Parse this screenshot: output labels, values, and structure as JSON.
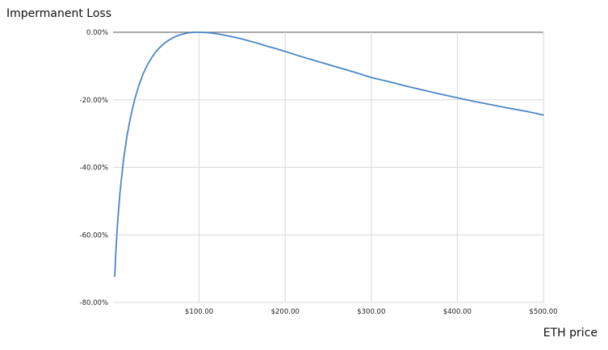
{
  "chart_data": {
    "type": "line",
    "title": "",
    "ylabel": "Impermanent Loss",
    "xlabel": "ETH price",
    "xlim": [
      0,
      500
    ],
    "ylim": [
      -80,
      0
    ],
    "x_ticks": [
      100,
      200,
      300,
      400,
      500
    ],
    "x_tick_labels": [
      "$100.00",
      "$200.00",
      "$300.00",
      "$400.00",
      "$500.00"
    ],
    "y_ticks": [
      0,
      -20,
      -40,
      -60,
      -80
    ],
    "y_tick_labels": [
      "0.00%",
      "-20.00%",
      "-40.00%",
      "-60.00%",
      "-80.00%"
    ],
    "grid": true,
    "legend": "none",
    "series": [
      {
        "color": "#4a86c8",
        "x": [
          2,
          3,
          5,
          8,
          12,
          16,
          20,
          25,
          30,
          35,
          40,
          45,
          50,
          55,
          60,
          65,
          70,
          75,
          80,
          85,
          90,
          95,
          100,
          110,
          120,
          130,
          140,
          150,
          160,
          170,
          180,
          190,
          200,
          220,
          240,
          260,
          280,
          300,
          320,
          340,
          360,
          380,
          400,
          420,
          440,
          460,
          480,
          500
        ],
        "y": [
          -72.3,
          -66.3,
          -57.4,
          -47.6,
          -38.1,
          -31.0,
          -25.5,
          -20.0,
          -15.7,
          -12.3,
          -9.6,
          -7.5,
          -5.7,
          -4.3,
          -3.2,
          -2.3,
          -1.6,
          -1.0,
          -0.6,
          -0.3,
          -0.1,
          -0.0,
          0.0,
          -0.1,
          -0.4,
          -0.9,
          -1.4,
          -2.0,
          -2.7,
          -3.4,
          -4.2,
          -4.9,
          -5.7,
          -7.3,
          -8.8,
          -10.3,
          -11.8,
          -13.4,
          -14.6,
          -15.9,
          -17.1,
          -18.3,
          -19.4,
          -20.5,
          -21.5,
          -22.5,
          -23.4,
          -24.5
        ]
      }
    ]
  }
}
